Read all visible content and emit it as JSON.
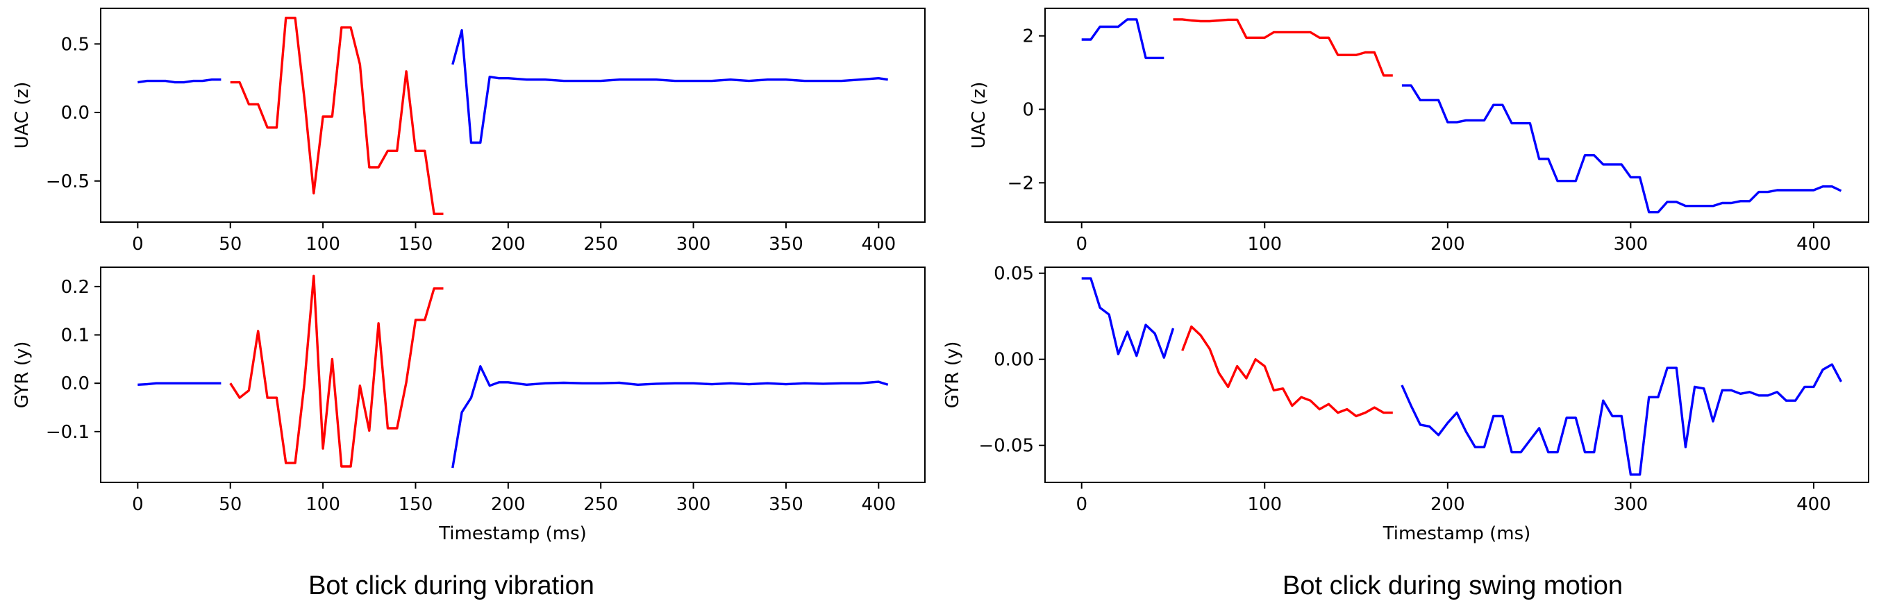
{
  "captions": {
    "left": "Bot click during vibration",
    "right": "Bot click during swing motion"
  },
  "colors": {
    "normal": "#0000ff",
    "click": "#ff0000",
    "axes": "#000000"
  },
  "chart_data": [
    {
      "id": "vib-uac",
      "type": "line",
      "ylabel": "UAC (z)",
      "xlabel": "",
      "xlim": [
        -20,
        425
      ],
      "ylim": [
        -0.8,
        0.76
      ],
      "xticks": [
        0,
        50,
        100,
        150,
        200,
        250,
        300,
        350,
        400
      ],
      "yticks": [
        -0.5,
        0.0,
        0.5
      ],
      "ytick_labels": [
        "−0.5",
        "0.0",
        "0.5"
      ],
      "series": [
        {
          "color": "normal",
          "x": [
            0,
            5,
            10,
            15,
            20,
            25,
            30,
            35,
            40,
            45
          ],
          "y": [
            0.22,
            0.23,
            0.23,
            0.23,
            0.22,
            0.22,
            0.23,
            0.23,
            0.24,
            0.24
          ]
        },
        {
          "color": "click",
          "x": [
            50,
            55,
            60,
            65,
            70,
            75,
            80,
            85,
            90,
            95,
            100,
            105,
            110,
            115,
            120,
            125,
            130,
            135,
            140,
            145,
            150,
            155,
            160,
            165
          ],
          "y": [
            0.22,
            0.22,
            0.06,
            0.06,
            -0.11,
            -0.11,
            0.69,
            0.69,
            0.1,
            -0.59,
            -0.03,
            -0.03,
            0.62,
            0.62,
            0.35,
            -0.4,
            -0.4,
            -0.28,
            -0.28,
            0.3,
            -0.28,
            -0.28,
            -0.74,
            -0.74
          ]
        },
        {
          "color": "normal",
          "x": [
            170,
            175,
            180,
            185,
            190,
            195,
            200,
            210,
            220,
            230,
            240,
            250,
            260,
            270,
            280,
            290,
            300,
            310,
            320,
            330,
            340,
            350,
            360,
            370,
            380,
            390,
            400,
            405
          ],
          "y": [
            0.35,
            0.6,
            -0.22,
            -0.22,
            0.26,
            0.25,
            0.25,
            0.24,
            0.24,
            0.23,
            0.23,
            0.23,
            0.24,
            0.24,
            0.24,
            0.23,
            0.23,
            0.23,
            0.24,
            0.23,
            0.24,
            0.24,
            0.23,
            0.23,
            0.23,
            0.24,
            0.25,
            0.24
          ]
        }
      ]
    },
    {
      "id": "vib-gyr",
      "type": "line",
      "ylabel": "GYR (y)",
      "xlabel": "Timestamp (ms)",
      "xlim": [
        -20,
        425
      ],
      "ylim": [
        -0.205,
        0.24
      ],
      "xticks": [
        0,
        50,
        100,
        150,
        200,
        250,
        300,
        350,
        400
      ],
      "yticks": [
        -0.1,
        0.0,
        0.1,
        0.2
      ],
      "ytick_labels": [
        "−0.1",
        "0.0",
        "0.1",
        "0.2"
      ],
      "series": [
        {
          "color": "normal",
          "x": [
            0,
            5,
            10,
            15,
            20,
            25,
            30,
            35,
            40,
            45
          ],
          "y": [
            -0.003,
            -0.002,
            0.0,
            0.0,
            0.0,
            0.0,
            0.0,
            0.0,
            0.0,
            0.0
          ]
        },
        {
          "color": "click",
          "x": [
            50,
            55,
            60,
            65,
            70,
            75,
            80,
            85,
            90,
            95,
            100,
            105,
            110,
            115,
            120,
            125,
            130,
            135,
            140,
            145,
            150,
            155,
            160,
            165
          ],
          "y": [
            0.0,
            -0.03,
            -0.015,
            0.108,
            -0.03,
            -0.03,
            -0.165,
            -0.165,
            0.0,
            0.222,
            -0.135,
            0.05,
            -0.172,
            -0.172,
            -0.005,
            -0.098,
            0.124,
            -0.093,
            -0.093,
            0.002,
            0.131,
            0.131,
            0.196,
            0.196
          ]
        },
        {
          "color": "normal",
          "x": [
            170,
            175,
            180,
            185,
            190,
            195,
            200,
            210,
            220,
            230,
            240,
            250,
            260,
            270,
            280,
            290,
            300,
            310,
            320,
            330,
            340,
            350,
            360,
            370,
            380,
            390,
            400,
            405
          ],
          "y": [
            -0.175,
            -0.06,
            -0.03,
            0.035,
            -0.005,
            0.002,
            0.002,
            -0.003,
            0.0,
            0.001,
            0.0,
            0.0,
            0.001,
            -0.003,
            -0.001,
            0.0,
            0.0,
            -0.002,
            0.0,
            -0.002,
            0.0,
            -0.002,
            0.0,
            -0.001,
            0.0,
            0.0,
            0.003,
            -0.003
          ]
        }
      ]
    },
    {
      "id": "swing-uac",
      "type": "line",
      "ylabel": "UAC (z)",
      "xlabel": "",
      "xlim": [
        -20,
        430
      ],
      "ylim": [
        -3.07,
        2.75
      ],
      "xticks": [
        0,
        100,
        200,
        300,
        400
      ],
      "yticks": [
        -2,
        0,
        2
      ],
      "ytick_labels": [
        "−2",
        "0",
        "2"
      ],
      "series": [
        {
          "color": "normal",
          "x": [
            0,
            5,
            10,
            15,
            20,
            25,
            30,
            35,
            40,
            45
          ],
          "y": [
            1.9,
            1.9,
            2.25,
            2.25,
            2.25,
            2.45,
            2.45,
            1.4,
            1.4,
            1.4
          ]
        },
        {
          "color": "click",
          "x": [
            50,
            55,
            60,
            65,
            70,
            75,
            80,
            85,
            90,
            95,
            100,
            105,
            110,
            115,
            120,
            125,
            130,
            135,
            140,
            145,
            150,
            155,
            160,
            165,
            170
          ],
          "y": [
            2.45,
            2.45,
            2.42,
            2.4,
            2.4,
            2.42,
            2.44,
            2.44,
            1.95,
            1.95,
            1.95,
            2.1,
            2.1,
            2.1,
            2.1,
            2.1,
            1.95,
            1.95,
            1.48,
            1.48,
            1.48,
            1.55,
            1.55,
            0.92,
            0.92
          ]
        },
        {
          "color": "normal",
          "x": [
            175,
            180,
            185,
            190,
            195,
            200,
            205,
            210,
            215,
            220,
            225,
            230,
            235,
            240,
            245,
            250,
            255,
            260,
            265,
            270,
            275,
            280,
            285,
            290,
            295,
            300,
            305,
            310,
            315,
            320,
            325,
            330,
            335,
            340,
            345,
            350,
            355,
            360,
            365,
            370,
            375,
            380,
            385,
            390,
            395,
            400,
            405,
            410,
            415
          ],
          "y": [
            0.65,
            0.65,
            0.25,
            0.25,
            0.25,
            -0.35,
            -0.35,
            -0.3,
            -0.3,
            -0.3,
            0.12,
            0.12,
            -0.38,
            -0.38,
            -0.38,
            -1.35,
            -1.35,
            -1.95,
            -1.95,
            -1.95,
            -1.25,
            -1.25,
            -1.5,
            -1.5,
            -1.5,
            -1.85,
            -1.85,
            -2.8,
            -2.8,
            -2.52,
            -2.52,
            -2.63,
            -2.63,
            -2.63,
            -2.63,
            -2.55,
            -2.55,
            -2.5,
            -2.5,
            -2.25,
            -2.25,
            -2.2,
            -2.2,
            -2.2,
            -2.2,
            -2.2,
            -2.1,
            -2.1,
            -2.22
          ]
        }
      ]
    },
    {
      "id": "swing-gyr",
      "type": "line",
      "ylabel": "GYR (y)",
      "xlabel": "Timestamp (ms)",
      "xlim": [
        -20,
        430
      ],
      "ylim": [
        -0.0715,
        0.0535
      ],
      "xticks": [
        0,
        100,
        200,
        300,
        400
      ],
      "yticks": [
        -0.05,
        0.0,
        0.05
      ],
      "ytick_labels": [
        "−0.05",
        "0.00",
        "0.05"
      ],
      "series": [
        {
          "color": "normal",
          "x": [
            0,
            5,
            10,
            15,
            20,
            25,
            30,
            35,
            40,
            45,
            50
          ],
          "y": [
            0.047,
            0.047,
            0.03,
            0.026,
            0.003,
            0.016,
            0.002,
            0.02,
            0.015,
            0.001,
            0.018
          ]
        },
        {
          "color": "click",
          "x": [
            55,
            60,
            65,
            70,
            75,
            80,
            85,
            90,
            95,
            100,
            105,
            110,
            115,
            120,
            125,
            130,
            135,
            140,
            145,
            150,
            155,
            160,
            165,
            170
          ],
          "y": [
            0.005,
            0.019,
            0.014,
            0.006,
            -0.008,
            -0.016,
            -0.004,
            -0.011,
            0.0,
            -0.004,
            -0.018,
            -0.017,
            -0.027,
            -0.022,
            -0.024,
            -0.029,
            -0.026,
            -0.031,
            -0.029,
            -0.033,
            -0.031,
            -0.028,
            -0.031,
            -0.031
          ]
        },
        {
          "color": "normal",
          "x": [
            175,
            180,
            185,
            190,
            195,
            200,
            205,
            210,
            215,
            220,
            225,
            230,
            235,
            240,
            245,
            250,
            255,
            260,
            265,
            270,
            275,
            280,
            285,
            290,
            295,
            300,
            305,
            310,
            315,
            320,
            325,
            330,
            335,
            340,
            345,
            350,
            355,
            360,
            365,
            370,
            375,
            380,
            385,
            390,
            395,
            400,
            405,
            410,
            415
          ],
          "y": [
            -0.015,
            -0.027,
            -0.038,
            -0.039,
            -0.044,
            -0.037,
            -0.031,
            -0.042,
            -0.051,
            -0.051,
            -0.033,
            -0.033,
            -0.054,
            -0.054,
            -0.047,
            -0.04,
            -0.054,
            -0.054,
            -0.034,
            -0.034,
            -0.054,
            -0.054,
            -0.024,
            -0.033,
            -0.033,
            -0.067,
            -0.067,
            -0.022,
            -0.022,
            -0.005,
            -0.005,
            -0.051,
            -0.016,
            -0.017,
            -0.036,
            -0.018,
            -0.018,
            -0.02,
            -0.019,
            -0.021,
            -0.021,
            -0.019,
            -0.024,
            -0.024,
            -0.016,
            -0.016,
            -0.006,
            -0.003,
            -0.013
          ]
        }
      ]
    }
  ]
}
